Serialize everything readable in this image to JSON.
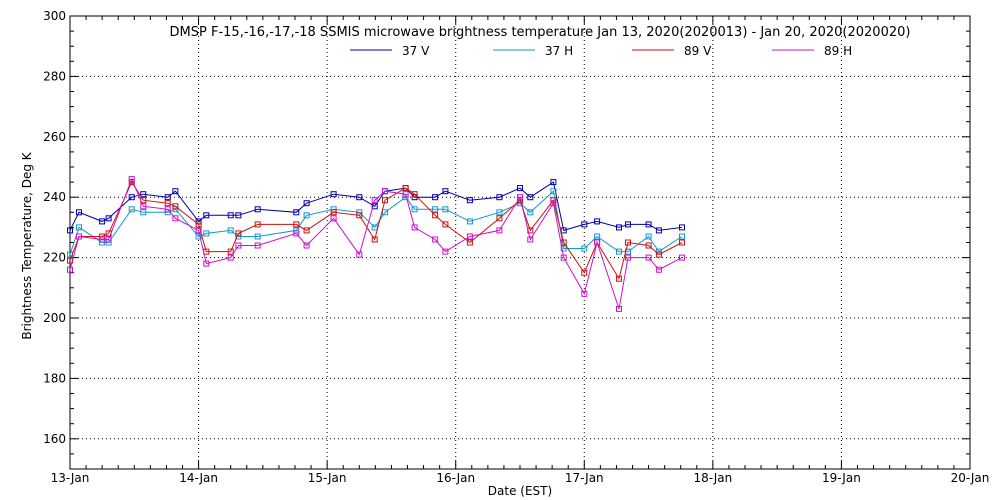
{
  "chart_data": {
    "type": "line",
    "title": "DMSP F-15,-16,-17,-18 SSMIS microwave brightness temperature Jan 13, 2020(2020013) - Jan 20, 2020(2020020)",
    "xlabel": "Date (EST)",
    "ylabel": "Brightness Temperature, Deg K",
    "xlim": [
      0,
      7
    ],
    "ylim": [
      150,
      300
    ],
    "x_ticks": [
      {
        "value": 0,
        "label": "13-Jan"
      },
      {
        "value": 1,
        "label": "14-Jan"
      },
      {
        "value": 2,
        "label": "15-Jan"
      },
      {
        "value": 3,
        "label": "16-Jan"
      },
      {
        "value": 4,
        "label": "17-Jan"
      },
      {
        "value": 5,
        "label": "18-Jan"
      },
      {
        "value": 6,
        "label": "19-Jan"
      },
      {
        "value": 7,
        "label": "20-Jan"
      }
    ],
    "y_ticks": [
      160,
      180,
      200,
      220,
      240,
      260,
      280,
      300
    ],
    "grid": true,
    "legend_position": "top-center",
    "x": [
      0.0,
      0.07,
      0.25,
      0.3,
      0.48,
      0.57,
      0.76,
      0.82,
      1.0,
      1.06,
      1.25,
      1.31,
      1.46,
      1.76,
      1.84,
      2.05,
      2.25,
      2.37,
      2.45,
      2.61,
      2.68,
      2.84,
      2.92,
      3.11,
      3.34,
      3.5,
      3.58,
      3.76,
      3.84,
      4.0,
      4.1,
      4.27,
      4.34,
      4.5,
      4.58,
      4.76,
      4.84
    ],
    "series": [
      {
        "name": "37 V",
        "color": "#0000aa",
        "values": [
          229,
          235,
          232,
          233,
          240,
          241,
          240,
          242,
          232,
          234,
          234,
          234,
          236,
          235,
          238,
          241,
          240,
          237,
          242,
          243,
          240,
          240,
          242,
          239,
          240,
          243,
          240,
          245,
          229,
          231,
          232,
          230,
          231,
          231,
          229,
          230,
          null
        ]
      },
      {
        "name": "37 H",
        "color": "#1199cc",
        "values": [
          221,
          230,
          225,
          225,
          236,
          235,
          235,
          236,
          227,
          228,
          229,
          227,
          227,
          229,
          234,
          236,
          235,
          230,
          235,
          240,
          236,
          236,
          236,
          232,
          235,
          238,
          235,
          242,
          223,
          223,
          227,
          222,
          222,
          227,
          222,
          227,
          null
        ]
      },
      {
        "name": "89 V",
        "color": "#cc1111",
        "values": [
          219,
          227,
          227,
          228,
          245,
          239,
          238,
          237,
          231,
          222,
          222,
          228,
          231,
          231,
          229,
          235,
          234,
          226,
          239,
          243,
          241,
          234,
          231,
          225,
          233,
          239,
          229,
          239,
          225,
          215,
          225,
          213,
          225,
          224,
          221,
          225,
          null
        ]
      },
      {
        "name": "89 H",
        "color": "#cc11cc",
        "values": [
          216,
          227,
          226,
          226,
          246,
          237,
          236,
          233,
          229,
          218,
          220,
          224,
          224,
          228,
          224,
          233,
          221,
          239,
          242,
          241,
          230,
          226,
          222,
          227,
          229,
          240,
          226,
          238,
          220,
          208,
          225,
          203,
          220,
          220,
          216,
          220,
          null
        ]
      }
    ]
  }
}
